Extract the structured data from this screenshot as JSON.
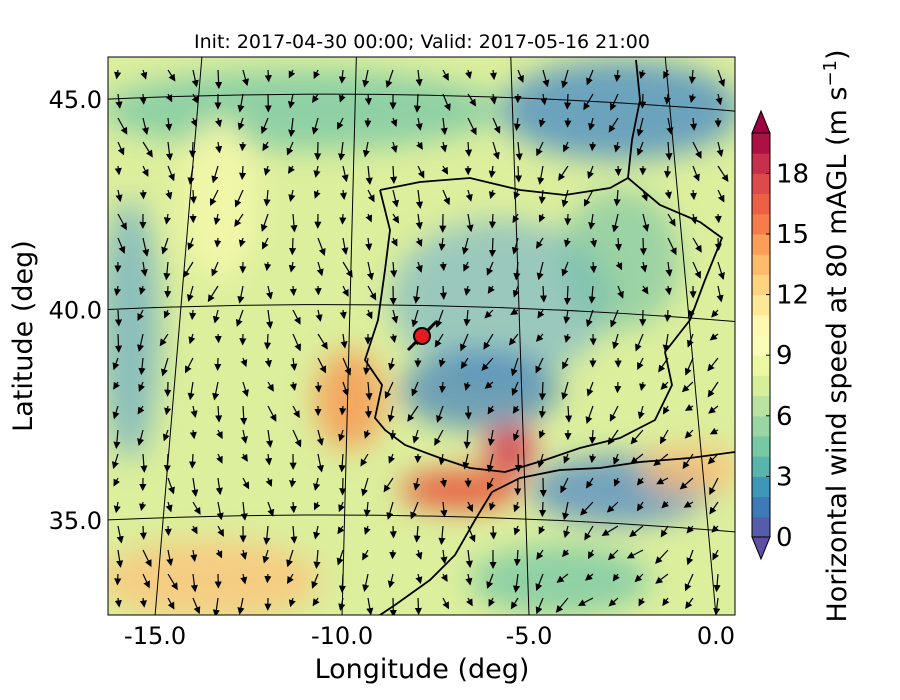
{
  "title": "Init: 2017-04-30 00:00; Valid: 2017-05-16 21:00",
  "x_label": "Longitude (deg)",
  "y_label": "Latitude (deg)",
  "xlim": [
    -16.26,
    0.51
  ],
  "ylim": [
    32.74,
    46.0
  ],
  "xticks": [
    {
      "value": -15,
      "label": "-15.0"
    },
    {
      "value": -10,
      "label": "-10.0"
    },
    {
      "value": -5,
      "label": "-5.0"
    },
    {
      "value": 0,
      "label": "0.0"
    }
  ],
  "yticks": [
    {
      "value": 35,
      "label": "35.0"
    },
    {
      "value": 40,
      "label": "40.0"
    },
    {
      "value": 45,
      "label": "45.0"
    }
  ],
  "colorbar": {
    "label": "Horizontal wind speed at 80 mAGL (m s",
    "label_sup": "−1",
    "label_end": ")",
    "lim": [
      0,
      20
    ],
    "ticks": [
      0,
      3,
      6,
      9,
      12,
      15,
      18
    ]
  }
}
